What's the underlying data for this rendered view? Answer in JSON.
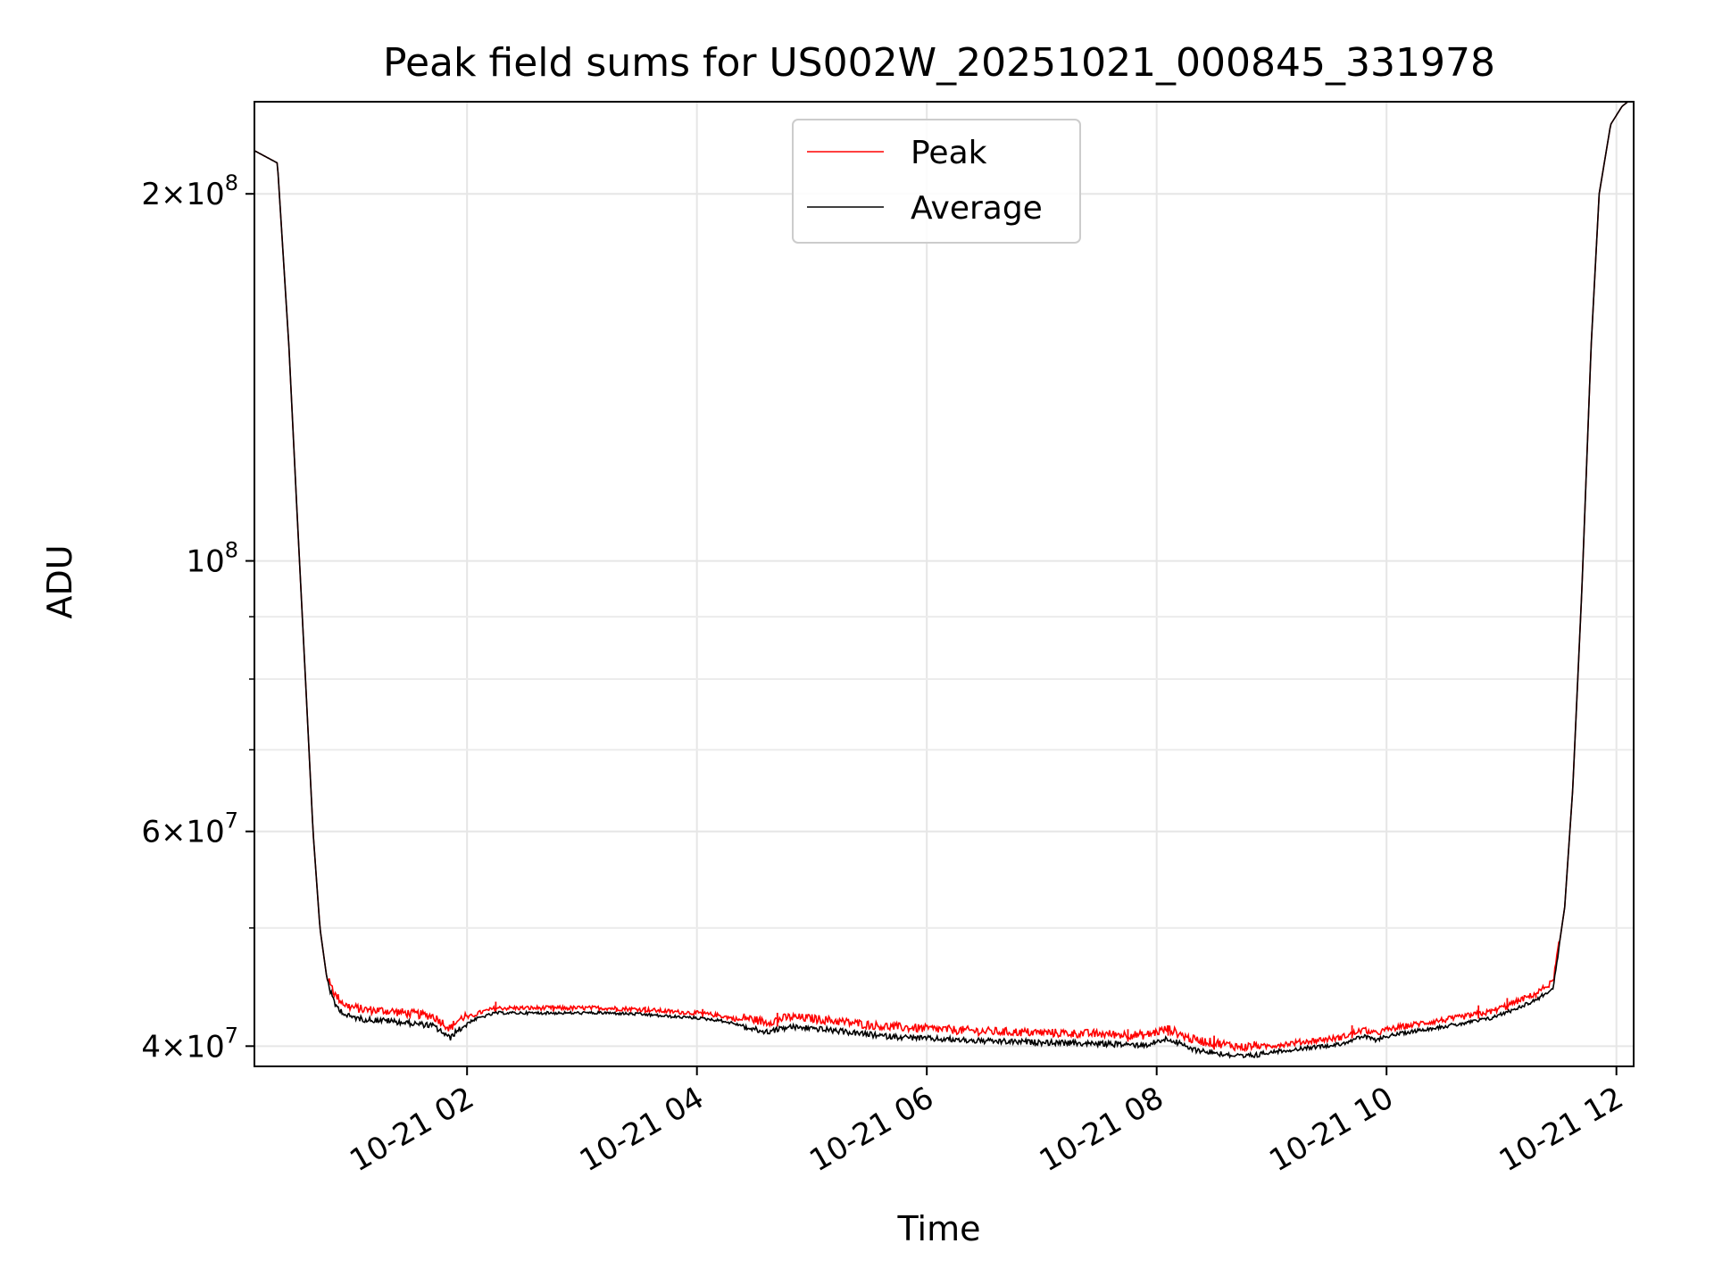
{
  "chart_data": {
    "type": "line",
    "title": "Peak field sums for US002W_20251021_000845_331978",
    "xlabel": "Time",
    "ylabel": "ADU",
    "yscale": "log",
    "ylim": [
      38500000,
      238000000
    ],
    "xlim_hours": [
      0.15,
      12.15
    ],
    "grid": true,
    "legend_position": "top-center",
    "x_ticks": [
      {
        "hour": 2,
        "label": "10-21 02"
      },
      {
        "hour": 4,
        "label": "10-21 04"
      },
      {
        "hour": 6,
        "label": "10-21 06"
      },
      {
        "hour": 8,
        "label": "10-21 08"
      },
      {
        "hour": 10,
        "label": "10-21 10"
      },
      {
        "hour": 12,
        "label": "10-21 12"
      }
    ],
    "y_major_ticks": [
      {
        "value": 40000000,
        "mantissa": "4",
        "exp": "7"
      },
      {
        "value": 60000000,
        "mantissa": "6",
        "exp": "7"
      },
      {
        "value": 100000000,
        "mantissa": "",
        "exp": "8"
      },
      {
        "value": 200000000,
        "mantissa": "2",
        "exp": "8"
      }
    ],
    "y_minor_ticks": [
      50000000,
      70000000,
      80000000,
      90000000
    ],
    "series": [
      {
        "name": "Peak",
        "color": "#ff0000",
        "spikes": [
          {
            "x": 2.25,
            "v": 43500000
          },
          {
            "x": 2.75,
            "v": 43200000
          },
          {
            "x": 3.3,
            "v": 43000000
          },
          {
            "x": 3.55,
            "v": 43100000
          },
          {
            "x": 4.05,
            "v": 42900000
          },
          {
            "x": 4.7,
            "v": 42600000
          },
          {
            "x": 7.75,
            "v": 41300000
          },
          {
            "x": 8.1,
            "v": 41600000
          },
          {
            "x": 8.5,
            "v": 40800000
          },
          {
            "x": 9.7,
            "v": 41600000
          },
          {
            "x": 10.8,
            "v": 43200000
          },
          {
            "x": 11.05,
            "v": 43800000
          },
          {
            "x": 11.3,
            "v": 44200000
          }
        ]
      },
      {
        "name": "Average",
        "color": "#000000",
        "points": [
          [
            0.15,
            217000000
          ],
          [
            0.35,
            212000000
          ],
          [
            0.45,
            150000000
          ],
          [
            0.52,
            110000000
          ],
          [
            0.6,
            78000000
          ],
          [
            0.66,
            60000000
          ],
          [
            0.72,
            50000000
          ],
          [
            0.78,
            45500000
          ],
          [
            0.85,
            43500000
          ],
          [
            0.95,
            42600000
          ],
          [
            1.1,
            42300000
          ],
          [
            1.3,
            42200000
          ],
          [
            1.5,
            42000000
          ],
          [
            1.7,
            41800000
          ],
          [
            1.8,
            41200000
          ],
          [
            1.85,
            40800000
          ],
          [
            1.9,
            41300000
          ],
          [
            2.0,
            41900000
          ],
          [
            2.1,
            42300000
          ],
          [
            2.25,
            42700000
          ],
          [
            2.4,
            42700000
          ],
          [
            2.8,
            42700000
          ],
          [
            3.2,
            42700000
          ],
          [
            3.5,
            42600000
          ],
          [
            3.8,
            42400000
          ],
          [
            4.0,
            42300000
          ],
          [
            4.2,
            42100000
          ],
          [
            4.4,
            41700000
          ],
          [
            4.6,
            41300000
          ],
          [
            4.8,
            41700000
          ],
          [
            5.0,
            41600000
          ],
          [
            5.3,
            41300000
          ],
          [
            5.6,
            41000000
          ],
          [
            6.0,
            40800000
          ],
          [
            6.5,
            40600000
          ],
          [
            7.0,
            40500000
          ],
          [
            7.5,
            40400000
          ],
          [
            7.9,
            40300000
          ],
          [
            8.1,
            40800000
          ],
          [
            8.3,
            40000000
          ],
          [
            8.6,
            39600000
          ],
          [
            8.75,
            39400000
          ],
          [
            9.0,
            39700000
          ],
          [
            9.3,
            40000000
          ],
          [
            9.6,
            40300000
          ],
          [
            9.8,
            40900000
          ],
          [
            9.9,
            40600000
          ],
          [
            10.0,
            40900000
          ],
          [
            10.3,
            41400000
          ],
          [
            10.6,
            41800000
          ],
          [
            10.9,
            42300000
          ],
          [
            11.1,
            43000000
          ],
          [
            11.3,
            43800000
          ],
          [
            11.45,
            44800000
          ],
          [
            11.55,
            52000000
          ],
          [
            11.62,
            65000000
          ],
          [
            11.7,
            95000000
          ],
          [
            11.78,
            150000000
          ],
          [
            11.85,
            200000000
          ],
          [
            11.95,
            228000000
          ],
          [
            12.05,
            236000000
          ],
          [
            12.15,
            240000000
          ]
        ]
      }
    ]
  }
}
